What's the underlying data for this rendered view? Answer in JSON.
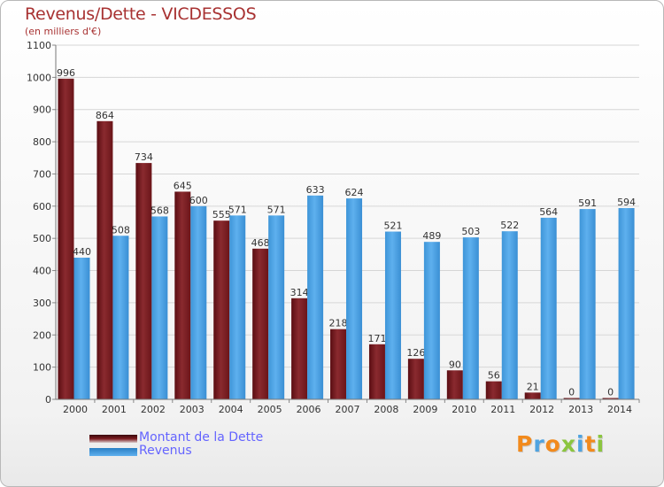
{
  "chart_data": {
    "type": "bar",
    "title": "Revenus/Dette - VICDESSOS",
    "subtitle": "(en milliers d'€)",
    "categories": [
      "2000",
      "2001",
      "2002",
      "2003",
      "2004",
      "2005",
      "2006",
      "2007",
      "2008",
      "2009",
      "2010",
      "2011",
      "2012",
      "2013",
      "2014"
    ],
    "series": [
      {
        "name": "Montant de la Dette",
        "color": "#7a1a1e",
        "values": [
          996,
          864,
          734,
          645,
          555,
          468,
          314,
          218,
          171,
          126,
          90,
          56,
          21,
          0,
          0
        ]
      },
      {
        "name": "Revenus",
        "color": "#4aa3e6",
        "values": [
          440,
          508,
          568,
          600,
          571,
          571,
          633,
          624,
          521,
          489,
          503,
          522,
          564,
          591,
          594
        ]
      }
    ],
    "yticks": [
      "0",
      "100",
      "200",
      "300",
      "400",
      "500",
      "600",
      "700",
      "800",
      "900",
      "1000",
      "1100"
    ],
    "ylim": [
      0,
      1100
    ],
    "grid": true,
    "legend": "bottom-left"
  },
  "logo": {
    "letters": [
      "P",
      "r",
      "o",
      "x",
      "i",
      "t",
      "i"
    ],
    "colors": [
      "#f28a1c",
      "#4fa3e0",
      "#f28a1c",
      "#8bc53f",
      "#4fa3e0",
      "#f28a1c",
      "#8bc53f"
    ]
  }
}
